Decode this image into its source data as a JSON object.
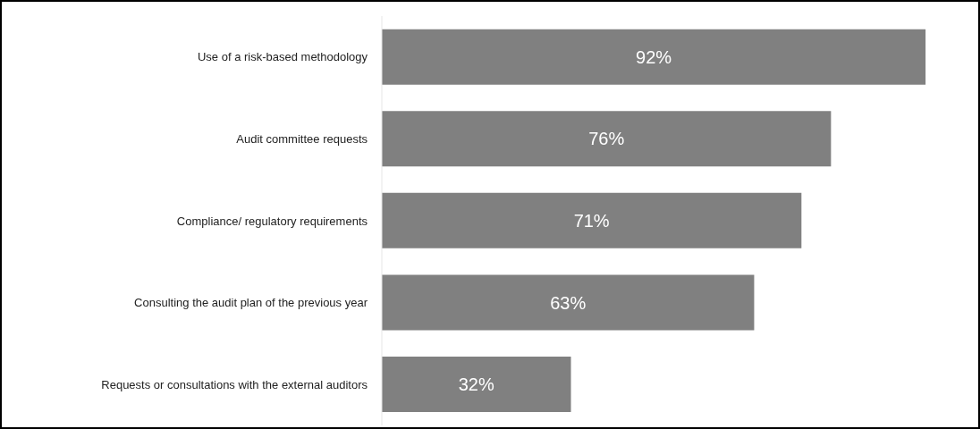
{
  "chart_data": {
    "type": "bar",
    "orientation": "horizontal",
    "categories": [
      "Use of a risk-based methodology",
      "Audit committee requests",
      "Compliance/ regulatory requirements",
      "Consulting the audit plan of the previous year",
      "Requests or consultations with the external auditors"
    ],
    "values": [
      92,
      76,
      71,
      63,
      32
    ],
    "value_labels": [
      "92%",
      "76%",
      "71%",
      "63%",
      "32%"
    ],
    "color": "#808080",
    "tick_labels": "y",
    "grid": false,
    "legend": false
  }
}
